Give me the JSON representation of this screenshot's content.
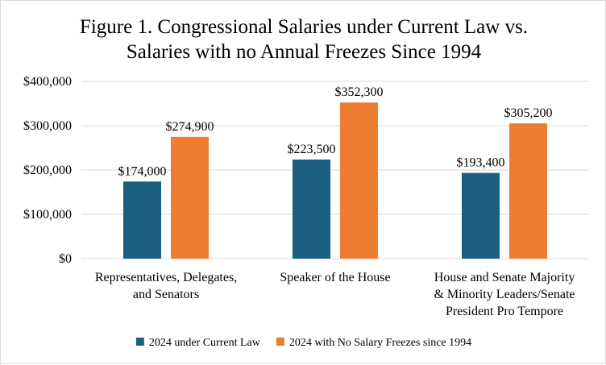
{
  "chart_data": {
    "type": "bar",
    "title_lines": [
      "Figure 1. Congressional Salaries under Current Law vs.",
      "Salaries with no Annual Freezes Since 1994"
    ],
    "categories": [
      [
        "Representatives, Delegates,",
        "and Senators"
      ],
      [
        "Speaker of the House"
      ],
      [
        "House and Senate Majority",
        "& Minority Leaders/Senate",
        "President Pro Tempore"
      ]
    ],
    "series": [
      {
        "name": "2024 under Current Law",
        "color": "#1a5f7f",
        "values": [
          174000,
          223500,
          193400
        ],
        "labels": [
          "$174,000",
          "$223,500",
          "$193,400"
        ]
      },
      {
        "name": "2024 with No Salary Freezes since 1994",
        "color": "#ed7d31",
        "values": [
          274900,
          352300,
          305200
        ],
        "labels": [
          "$274,900",
          "$352,300",
          "$305,200"
        ]
      }
    ],
    "ylim": [
      0,
      400000
    ],
    "yticks": [
      0,
      100000,
      200000,
      300000,
      400000
    ],
    "ytick_labels": [
      "$0",
      "$100,000",
      "$200,000",
      "$300,000",
      "$400,000"
    ],
    "grid": true,
    "gridline_color": "#d9d9d9",
    "legend_position": "bottom"
  }
}
